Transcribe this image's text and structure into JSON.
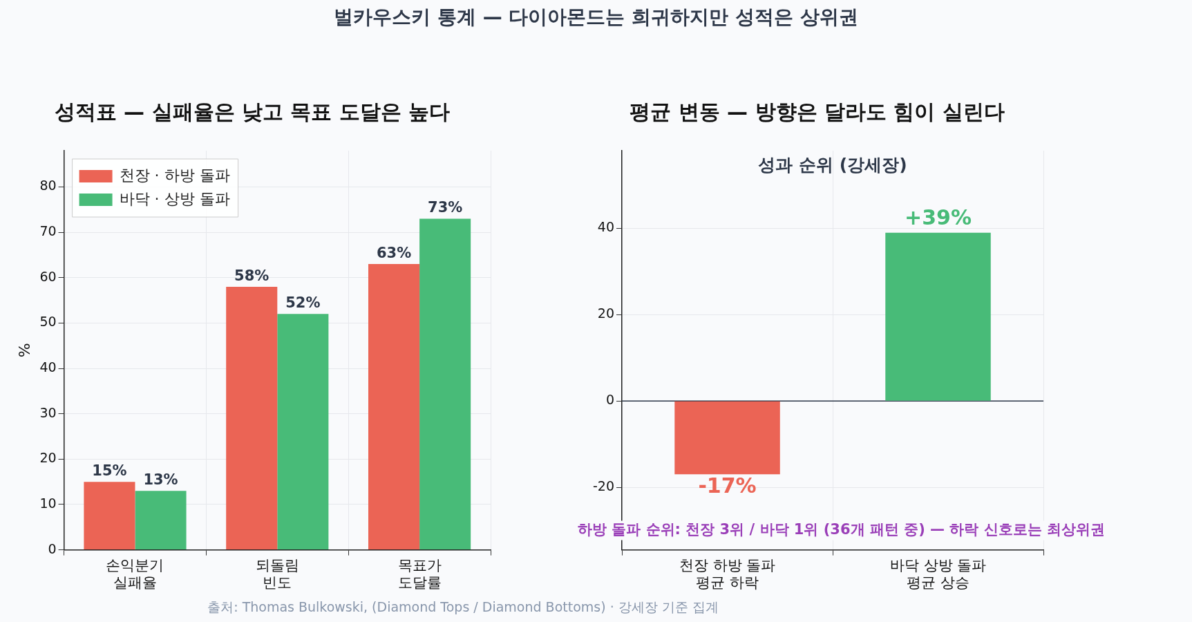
{
  "chart_data": [
    {
      "type": "bar",
      "title": "성적표 — 실패율은 낮고 목표 도달은 높다",
      "ylabel": "%",
      "categories": [
        "손익분기\n실패율",
        "되돌림\n빈도",
        "목표가\n도달률"
      ],
      "series": [
        {
          "name": "천장 · 하방 돌파",
          "color": "#eb6455",
          "values": [
            15,
            58,
            63
          ],
          "value_labels": [
            "15%",
            "58%",
            "63%"
          ]
        },
        {
          "name": "바닥 · 상방 돌파",
          "color": "#48bb78",
          "values": [
            13,
            52,
            73
          ],
          "value_labels": [
            "13%",
            "52%",
            "73%"
          ]
        }
      ],
      "ylim": [
        0,
        88
      ],
      "yticks": [
        0,
        10,
        20,
        30,
        40,
        50,
        60,
        70,
        80
      ],
      "grid": true,
      "legend": "top left",
      "annotations": [
        "벌카우스키 통계 — 다이아몬드는 희귀하지만 성적은 상위권",
        "출처: Thomas Bulkowski, (Diamond Tops / Diamond Bottoms) · 강세장 기준 집계"
      ]
    },
    {
      "type": "bar",
      "title": "평균 변동 — 방향은 달라도 힘이 실린다",
      "subtitle": "성과 순위 (강세장)",
      "categories": [
        "천장 하방 돌파\n평균 하락",
        "바닥 상방 돌파\n평균 상승"
      ],
      "values": [
        -17,
        39
      ],
      "colors": [
        "#eb6455",
        "#48bb78"
      ],
      "value_labels": [
        "-17%",
        "+39%"
      ],
      "ylim": [
        -34.5,
        58
      ],
      "yticks": [
        -20,
        0,
        20,
        40
      ],
      "grid": true,
      "ref_lines": [
        {
          "axis": "y",
          "value": 0,
          "color": "#2d3748"
        }
      ],
      "annotations": [
        "하방 돌파 순위: 천장 3위 / 바닥 1위 (36개 패턴 중) — 하락 신호로는 최상위권"
      ]
    }
  ]
}
